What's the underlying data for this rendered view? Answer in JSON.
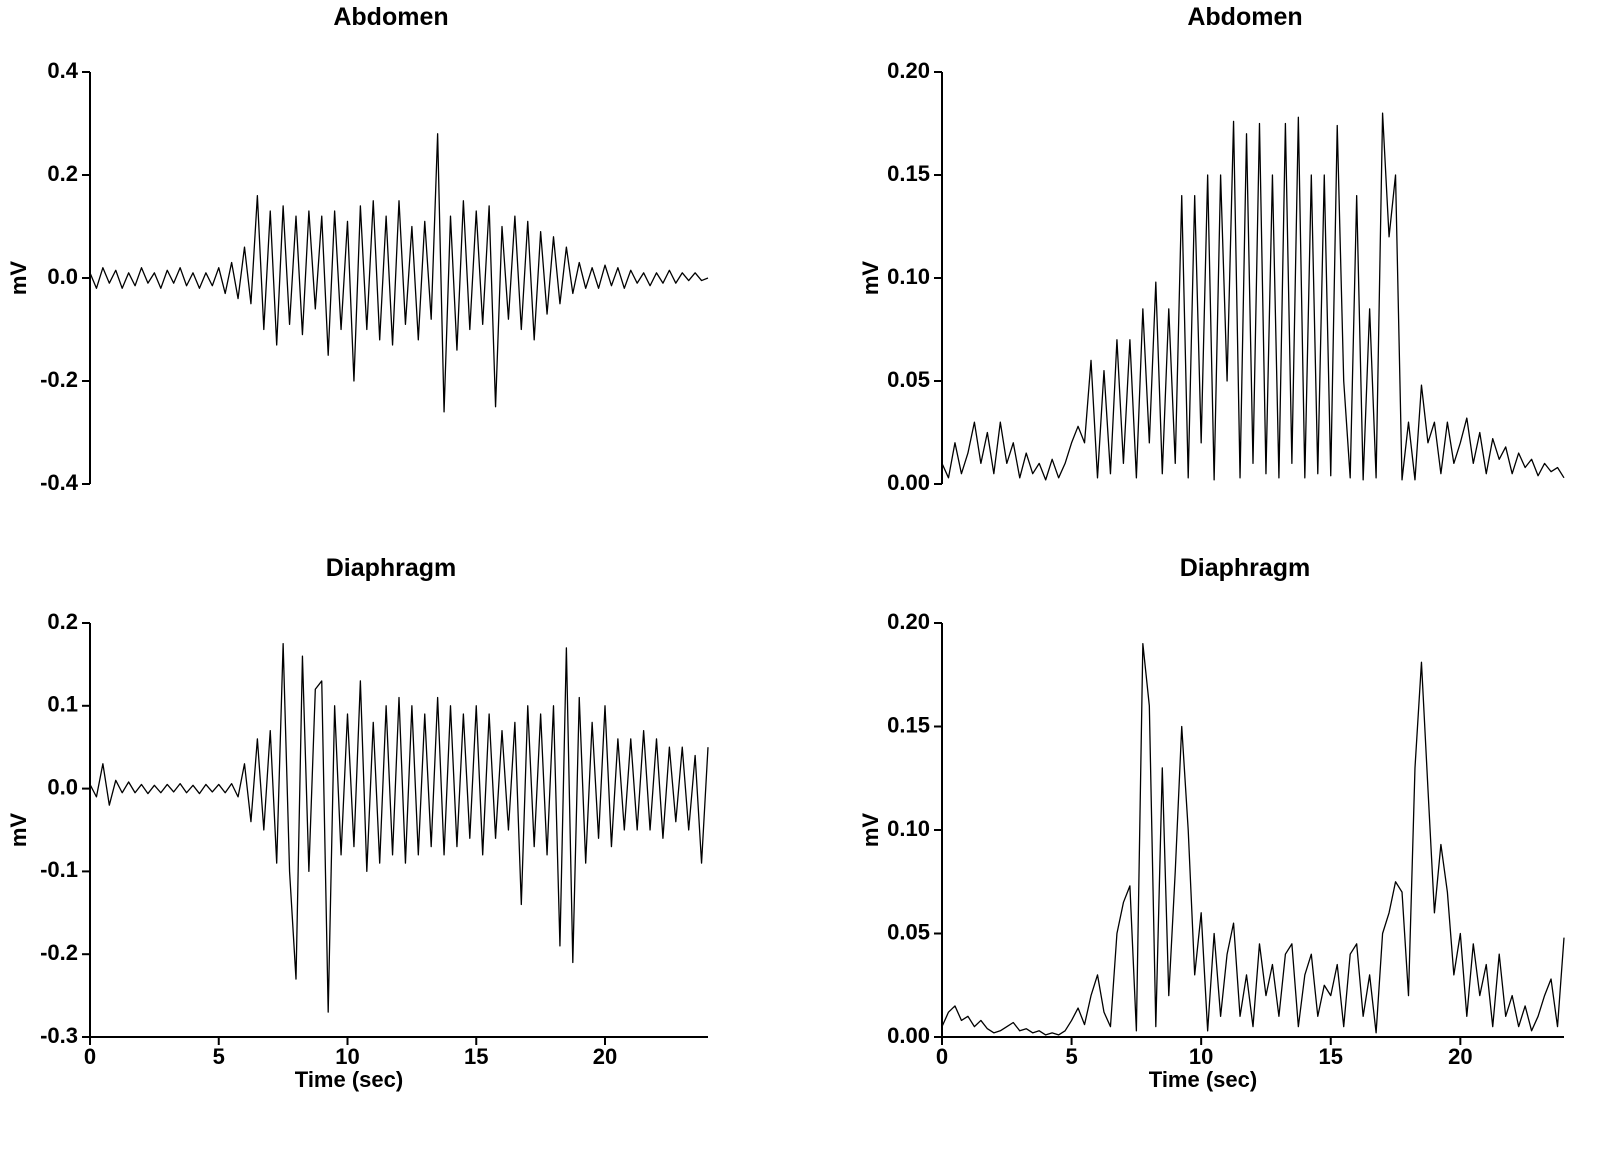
{
  "chart_data": [
    {
      "type": "line",
      "title": "Abdomen",
      "ylabel": "mV",
      "color": "#000000",
      "xlim": [
        0,
        24
      ],
      "ylim": [
        -0.4,
        0.4
      ],
      "yticks": [
        -0.4,
        -0.2,
        {
          "value": 0,
          "label": "0.0"
        },
        0.2,
        0.4
      ],
      "x": [
        0,
        0.25,
        0.5,
        0.75,
        1,
        1.25,
        1.5,
        1.75,
        2,
        2.25,
        2.5,
        2.75,
        3,
        3.25,
        3.5,
        3.75,
        4,
        4.25,
        4.5,
        4.75,
        5,
        5.25,
        5.5,
        5.75,
        6,
        6.25,
        6.5,
        6.75,
        7,
        7.25,
        7.5,
        7.75,
        8,
        8.25,
        8.5,
        8.75,
        9,
        9.25,
        9.5,
        9.75,
        10,
        10.25,
        10.5,
        10.75,
        11,
        11.25,
        11.5,
        11.75,
        12,
        12.25,
        12.5,
        12.75,
        13,
        13.25,
        13.5,
        13.75,
        14,
        14.25,
        14.5,
        14.75,
        15,
        15.25,
        15.5,
        15.75,
        16,
        16.25,
        16.5,
        16.75,
        17,
        17.25,
        17.5,
        17.75,
        18,
        18.25,
        18.5,
        18.75,
        19,
        19.25,
        19.5,
        19.75,
        20,
        20.25,
        20.5,
        20.75,
        21,
        21.25,
        21.5,
        21.75,
        22,
        22.25,
        22.5,
        22.75,
        23,
        23.25,
        23.5,
        23.75,
        24
      ],
      "values": [
        0.01,
        -0.02,
        0.02,
        -0.01,
        0.015,
        -0.02,
        0.01,
        -0.015,
        0.02,
        -0.01,
        0.01,
        -0.02,
        0.015,
        -0.01,
        0.02,
        -0.015,
        0.01,
        -0.02,
        0.01,
        -0.015,
        0.02,
        -0.03,
        0.03,
        -0.04,
        0.06,
        -0.05,
        0.16,
        -0.1,
        0.13,
        -0.13,
        0.14,
        -0.09,
        0.12,
        -0.11,
        0.13,
        -0.06,
        0.12,
        -0.15,
        0.13,
        -0.1,
        0.11,
        -0.2,
        0.14,
        -0.1,
        0.15,
        -0.12,
        0.12,
        -0.13,
        0.15,
        -0.09,
        0.1,
        -0.12,
        0.11,
        -0.08,
        0.28,
        -0.26,
        0.12,
        -0.14,
        0.15,
        -0.1,
        0.13,
        -0.09,
        0.14,
        -0.25,
        0.1,
        -0.08,
        0.12,
        -0.1,
        0.11,
        -0.12,
        0.09,
        -0.07,
        0.08,
        -0.05,
        0.06,
        -0.03,
        0.03,
        -0.02,
        0.02,
        -0.02,
        0.025,
        -0.015,
        0.02,
        -0.02,
        0.015,
        -0.01,
        0.01,
        -0.015,
        0.01,
        -0.01,
        0.015,
        -0.01,
        0.01,
        -0.005,
        0.01,
        -0.005,
        0
      ]
    },
    {
      "type": "line",
      "title": "Abdomen",
      "ylabel": "mV",
      "color": "#000000",
      "xlim": [
        0,
        24
      ],
      "ylim": [
        0,
        0.2
      ],
      "yticks": [
        {
          "value": 0,
          "label": "0.00"
        },
        0.05,
        {
          "value": 0.1,
          "label": "0.10"
        },
        0.15,
        {
          "value": 0.2,
          "label": "0.20"
        }
      ],
      "x": [
        0,
        0.25,
        0.5,
        0.75,
        1,
        1.25,
        1.5,
        1.75,
        2,
        2.25,
        2.5,
        2.75,
        3,
        3.25,
        3.5,
        3.75,
        4,
        4.25,
        4.5,
        4.75,
        5,
        5.25,
        5.5,
        5.75,
        6,
        6.25,
        6.5,
        6.75,
        7,
        7.25,
        7.5,
        7.75,
        8,
        8.25,
        8.5,
        8.75,
        9,
        9.25,
        9.5,
        9.75,
        10,
        10.25,
        10.5,
        10.75,
        11,
        11.25,
        11.5,
        11.75,
        12,
        12.25,
        12.5,
        12.75,
        13,
        13.25,
        13.5,
        13.75,
        14,
        14.25,
        14.5,
        14.75,
        15,
        15.25,
        15.5,
        15.75,
        16,
        16.25,
        16.5,
        16.75,
        17,
        17.25,
        17.5,
        17.75,
        18,
        18.25,
        18.5,
        18.75,
        19,
        19.25,
        19.5,
        19.75,
        20,
        20.25,
        20.5,
        20.75,
        21,
        21.25,
        21.5,
        21.75,
        22,
        22.25,
        22.5,
        22.75,
        23,
        23.25,
        23.5,
        23.75,
        24
      ],
      "values": [
        0.01,
        0.003,
        0.02,
        0.005,
        0.015,
        0.03,
        0.01,
        0.025,
        0.005,
        0.03,
        0.01,
        0.02,
        0.003,
        0.015,
        0.005,
        0.01,
        0.002,
        0.012,
        0.003,
        0.01,
        0.02,
        0.028,
        0.02,
        0.06,
        0.003,
        0.055,
        0.005,
        0.07,
        0.01,
        0.07,
        0.003,
        0.085,
        0.02,
        0.098,
        0.005,
        0.085,
        0.01,
        0.14,
        0.003,
        0.14,
        0.02,
        0.15,
        0.002,
        0.15,
        0.05,
        0.176,
        0.003,
        0.17,
        0.01,
        0.175,
        0.005,
        0.15,
        0.003,
        0.175,
        0.01,
        0.178,
        0.003,
        0.15,
        0.005,
        0.15,
        0.004,
        0.174,
        0.05,
        0.003,
        0.14,
        0.002,
        0.085,
        0.003,
        0.18,
        0.12,
        0.15,
        0.002,
        0.03,
        0.002,
        0.048,
        0.02,
        0.03,
        0.005,
        0.03,
        0.01,
        0.02,
        0.032,
        0.01,
        0.025,
        0.005,
        0.022,
        0.012,
        0.018,
        0.005,
        0.015,
        0.008,
        0.012,
        0.004,
        0.01,
        0.006,
        0.008,
        0.003
      ]
    },
    {
      "type": "line",
      "title": "Diaphragm",
      "ylabel": "mV",
      "xlabel": "Time (sec)",
      "color": "#000000",
      "xlim": [
        0,
        24
      ],
      "ylim": [
        -0.3,
        0.2
      ],
      "xticks": [
        0,
        5,
        10,
        15,
        20
      ],
      "yticks": [
        -0.3,
        -0.2,
        -0.1,
        {
          "value": 0,
          "label": "0.0"
        },
        0.1,
        0.2
      ],
      "x": [
        0,
        0.25,
        0.5,
        0.75,
        1,
        1.25,
        1.5,
        1.75,
        2,
        2.25,
        2.5,
        2.75,
        3,
        3.25,
        3.5,
        3.75,
        4,
        4.25,
        4.5,
        4.75,
        5,
        5.25,
        5.5,
        5.75,
        6,
        6.25,
        6.5,
        6.75,
        7,
        7.25,
        7.5,
        7.75,
        8,
        8.25,
        8.5,
        8.75,
        9,
        9.25,
        9.5,
        9.75,
        10,
        10.25,
        10.5,
        10.75,
        11,
        11.25,
        11.5,
        11.75,
        12,
        12.25,
        12.5,
        12.75,
        13,
        13.25,
        13.5,
        13.75,
        14,
        14.25,
        14.5,
        14.75,
        15,
        15.25,
        15.5,
        15.75,
        16,
        16.25,
        16.5,
        16.75,
        17,
        17.25,
        17.5,
        17.75,
        18,
        18.25,
        18.5,
        18.75,
        19,
        19.25,
        19.5,
        19.75,
        20,
        20.25,
        20.5,
        20.75,
        21,
        21.25,
        21.5,
        21.75,
        22,
        22.25,
        22.5,
        22.75,
        23,
        23.25,
        23.5,
        23.75,
        24
      ],
      "values": [
        0.005,
        -0.01,
        0.03,
        -0.02,
        0.01,
        -0.005,
        0.008,
        -0.005,
        0.005,
        -0.006,
        0.004,
        -0.005,
        0.005,
        -0.004,
        0.006,
        -0.005,
        0.004,
        -0.006,
        0.005,
        -0.004,
        0.005,
        -0.005,
        0.006,
        -0.01,
        0.03,
        -0.04,
        0.06,
        -0.05,
        0.07,
        -0.09,
        0.175,
        -0.1,
        -0.23,
        0.16,
        -0.1,
        0.12,
        0.13,
        -0.27,
        0.1,
        -0.08,
        0.09,
        -0.07,
        0.13,
        -0.1,
        0.08,
        -0.09,
        0.1,
        -0.08,
        0.11,
        -0.09,
        0.1,
        -0.08,
        0.09,
        -0.07,
        0.11,
        -0.08,
        0.1,
        -0.07,
        0.09,
        -0.06,
        0.1,
        -0.08,
        0.09,
        -0.06,
        0.07,
        -0.05,
        0.08,
        -0.14,
        0.1,
        -0.07,
        0.09,
        -0.08,
        0.1,
        -0.19,
        0.17,
        -0.21,
        0.11,
        -0.09,
        0.08,
        -0.06,
        0.1,
        -0.07,
        0.06,
        -0.05,
        0.06,
        -0.05,
        0.07,
        -0.05,
        0.06,
        -0.06,
        0.05,
        -0.04,
        0.05,
        -0.05,
        0.04,
        -0.09,
        0.05
      ]
    },
    {
      "type": "line",
      "title": "Diaphragm",
      "ylabel": "mV",
      "xlabel": "Time (sec)",
      "color": "#000000",
      "xlim": [
        0,
        24
      ],
      "ylim": [
        0,
        0.2
      ],
      "xticks": [
        0,
        5,
        10,
        15,
        20
      ],
      "yticks": [
        {
          "value": 0,
          "label": "0.00"
        },
        0.05,
        {
          "value": 0.1,
          "label": "0.10"
        },
        0.15,
        {
          "value": 0.2,
          "label": "0.20"
        }
      ],
      "x": [
        0,
        0.25,
        0.5,
        0.75,
        1,
        1.25,
        1.5,
        1.75,
        2,
        2.25,
        2.5,
        2.75,
        3,
        3.25,
        3.5,
        3.75,
        4,
        4.25,
        4.5,
        4.75,
        5,
        5.25,
        5.5,
        5.75,
        6,
        6.25,
        6.5,
        6.75,
        7,
        7.25,
        7.5,
        7.75,
        8,
        8.25,
        8.5,
        8.75,
        9,
        9.25,
        9.5,
        9.75,
        10,
        10.25,
        10.5,
        10.75,
        11,
        11.25,
        11.5,
        11.75,
        12,
        12.25,
        12.5,
        12.75,
        13,
        13.25,
        13.5,
        13.75,
        14,
        14.25,
        14.5,
        14.75,
        15,
        15.25,
        15.5,
        15.75,
        16,
        16.25,
        16.5,
        16.75,
        17,
        17.25,
        17.5,
        17.75,
        18,
        18.25,
        18.5,
        18.75,
        19,
        19.25,
        19.5,
        19.75,
        20,
        20.25,
        20.5,
        20.75,
        21,
        21.25,
        21.5,
        21.75,
        22,
        22.25,
        22.5,
        22.75,
        23,
        23.25,
        23.5,
        23.75,
        24
      ],
      "values": [
        0.005,
        0.012,
        0.015,
        0.008,
        0.01,
        0.005,
        0.008,
        0.004,
        0.002,
        0.003,
        0.005,
        0.007,
        0.003,
        0.004,
        0.002,
        0.003,
        0.001,
        0.002,
        0.001,
        0.003,
        0.008,
        0.014,
        0.006,
        0.02,
        0.03,
        0.012,
        0.005,
        0.05,
        0.065,
        0.073,
        0.003,
        0.19,
        0.16,
        0.005,
        0.13,
        0.02,
        0.08,
        0.15,
        0.1,
        0.03,
        0.06,
        0.003,
        0.05,
        0.01,
        0.04,
        0.055,
        0.01,
        0.03,
        0.005,
        0.045,
        0.02,
        0.035,
        0.01,
        0.04,
        0.045,
        0.005,
        0.03,
        0.04,
        0.01,
        0.025,
        0.02,
        0.035,
        0.005,
        0.04,
        0.045,
        0.01,
        0.03,
        0.002,
        0.05,
        0.06,
        0.075,
        0.07,
        0.02,
        0.13,
        0.181,
        0.12,
        0.06,
        0.093,
        0.07,
        0.03,
        0.05,
        0.01,
        0.045,
        0.02,
        0.035,
        0.005,
        0.04,
        0.01,
        0.02,
        0.005,
        0.015,
        0.003,
        0.01,
        0.02,
        0.028,
        0.005,
        0.048
      ]
    }
  ]
}
